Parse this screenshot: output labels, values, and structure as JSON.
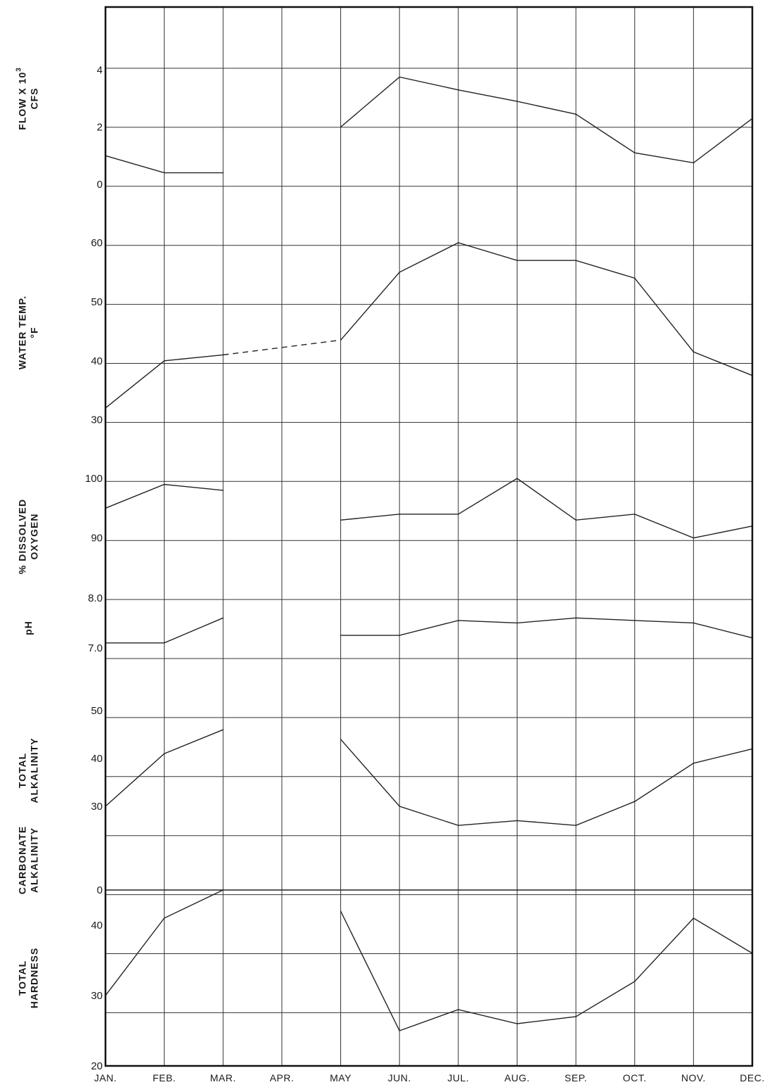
{
  "chart_data": {
    "type": "line",
    "x": [
      "JAN.",
      "FEB.",
      "MAR.",
      "APR.",
      "MAY",
      "JUN.",
      "JUL.",
      "AUG.",
      "SEP.",
      "OCT.",
      "NOV.",
      "DEC."
    ],
    "line_color": "#222222",
    "grid": true,
    "panels": [
      {
        "key": "flow",
        "ylabel_lines": [
          "FLOW X 10",
          "CFS"
        ],
        "ylabel_sup": "3",
        "yticks": [
          0,
          2,
          4
        ],
        "ylim": [
          -0.2,
          6.2
        ],
        "series": [
          {
            "values": [
              1.0,
              0.4,
              0.4,
              null,
              2.0,
              3.75,
              3.3,
              2.9,
              2.45,
              1.1,
              0.75,
              2.3
            ]
          }
        ]
      },
      {
        "key": "temp",
        "ylabel_lines": [
          "WATER TEMP.",
          "°F"
        ],
        "yticks": [
          30,
          40,
          50,
          60
        ],
        "ylim": [
          29.6,
          60.0
        ],
        "series": [
          {
            "values": [
              32,
              40,
              41,
              null,
              43.5,
              55,
              60,
              57,
              57,
              54,
              41.5,
              37.5
            ]
          }
        ],
        "interpolated": [
          {
            "from": 2,
            "to": 4,
            "style": "dashed"
          }
        ]
      },
      {
        "key": "do",
        "ylabel_lines": [
          "% DISSOLVED",
          "OXYGEN"
        ],
        "yticks": [
          90,
          100
        ],
        "ylim": [
          80.5,
          100.0
        ],
        "series": [
          {
            "values": [
              95,
              99,
              98,
              null,
              93,
              94,
              94,
              100,
              93,
              94,
              90,
              92
            ]
          }
        ]
      },
      {
        "key": "ph",
        "ylabel_lines": [
          "pH"
        ],
        "ytick_labels": [
          "7.0",
          "8.0"
        ],
        "yticks": [
          7.0,
          8.0
        ],
        "ylim": [
          6.8,
          8.0
        ],
        "series": [
          {
            "values": [
              7.1,
              7.1,
              7.6,
              null,
              7.25,
              7.25,
              7.55,
              7.5,
              7.6,
              7.55,
              7.5,
              7.2
            ]
          }
        ]
      },
      {
        "key": "alk",
        "ylabel_lines": [
          "TOTAL",
          "ALKALINITY"
        ],
        "yticks": [
          30,
          40,
          50
        ],
        "ylim": [
          25.0,
          50.0
        ],
        "series": [
          {
            "values": [
              30,
              41,
              46,
              null,
              44,
              30,
              26,
              27,
              26,
              31,
              39,
              42
            ]
          }
        ]
      },
      {
        "key": "carb",
        "ylabel_lines": [
          "CARBONATE",
          "ALKALINITY"
        ],
        "yticks": [
          0
        ],
        "ylim": [
          0.0,
          4.5
        ],
        "series": [
          {
            "values": [
              0,
              0,
              0,
              0,
              0,
              0,
              0,
              0,
              0,
              0,
              0,
              0
            ]
          }
        ]
      },
      {
        "key": "hard",
        "ylabel_lines": [
          "TOTAL",
          "HARDNESS"
        ],
        "yticks": [
          20,
          30,
          40
        ],
        "ylim": [
          20.0,
          45.0
        ],
        "series": [
          {
            "values": [
              30,
              41,
              45,
              null,
              42,
              25,
              28,
              26,
              27,
              32,
              41,
              36
            ]
          }
        ]
      }
    ]
  }
}
